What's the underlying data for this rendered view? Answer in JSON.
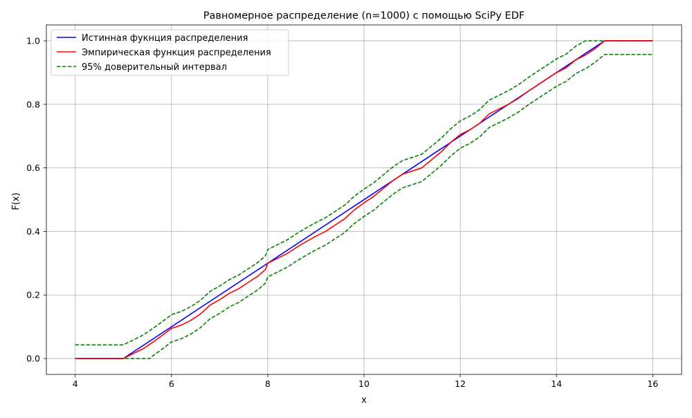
{
  "chart_data": {
    "type": "line",
    "title": "Равномерное распределение (n=1000) с помощью SciPy EDF",
    "xlabel": "x",
    "ylabel": "F(x)",
    "xlim": [
      3.4,
      16.6
    ],
    "ylim": [
      -0.05,
      1.05
    ],
    "grid": true,
    "legend_position": "top-left",
    "x_ticks": [
      4,
      6,
      8,
      10,
      12,
      14,
      16
    ],
    "x_tick_labels": [
      "4",
      "6",
      "8",
      "10",
      "12",
      "14",
      "16"
    ],
    "y_ticks": [
      0.0,
      0.2,
      0.4,
      0.6,
      0.8,
      1.0
    ],
    "y_tick_labels": [
      "0.0",
      "0.2",
      "0.4",
      "0.6",
      "0.8",
      "1.0"
    ],
    "series": [
      {
        "name": "Истинная фукнция распределения",
        "color": "#0000ff",
        "dash": "solid",
        "x": [
          4,
          5,
          15,
          16
        ],
        "y": [
          0,
          0,
          1,
          1
        ]
      },
      {
        "name": "Эмпирическая функция распределения",
        "color": "#ff0000",
        "dash": "solid",
        "x": [
          4,
          5.0,
          5.2,
          5.4,
          5.6,
          5.8,
          6.0,
          6.2,
          6.4,
          6.6,
          6.8,
          7.0,
          7.2,
          7.4,
          7.6,
          7.8,
          7.95,
          8.0,
          8.2,
          8.4,
          8.6,
          8.8,
          9.0,
          9.2,
          9.4,
          9.6,
          9.8,
          10.0,
          10.2,
          10.4,
          10.6,
          10.8,
          11.0,
          11.2,
          11.4,
          11.6,
          11.8,
          12.0,
          12.2,
          12.4,
          12.6,
          12.8,
          13.0,
          13.2,
          13.4,
          13.6,
          13.8,
          14.0,
          14.2,
          14.4,
          14.6,
          14.8,
          15.0,
          16.0
        ],
        "y": [
          0,
          0,
          0.015,
          0.03,
          0.05,
          0.072,
          0.095,
          0.105,
          0.12,
          0.14,
          0.168,
          0.185,
          0.205,
          0.22,
          0.24,
          0.26,
          0.28,
          0.3,
          0.315,
          0.33,
          0.35,
          0.368,
          0.385,
          0.4,
          0.42,
          0.44,
          0.468,
          0.49,
          0.51,
          0.535,
          0.56,
          0.58,
          0.59,
          0.6,
          0.625,
          0.65,
          0.68,
          0.705,
          0.72,
          0.74,
          0.77,
          0.785,
          0.8,
          0.818,
          0.84,
          0.86,
          0.88,
          0.9,
          0.915,
          0.94,
          0.955,
          0.975,
          1.0,
          1.0
        ]
      },
      {
        "name": "95% доверительный интервал",
        "color": "#008000",
        "dash": "dashed",
        "x": [
          4,
          5.0,
          5.2,
          5.4,
          5.6,
          5.8,
          6.0,
          6.2,
          6.4,
          6.6,
          6.8,
          7.0,
          7.2,
          7.4,
          7.6,
          7.8,
          7.95,
          8.0,
          8.2,
          8.4,
          8.6,
          8.8,
          9.0,
          9.2,
          9.4,
          9.6,
          9.8,
          10.0,
          10.2,
          10.4,
          10.6,
          10.8,
          11.0,
          11.2,
          11.4,
          11.6,
          11.8,
          12.0,
          12.2,
          12.4,
          12.6,
          12.8,
          13.0,
          13.2,
          13.4,
          13.6,
          13.8,
          14.0,
          14.2,
          14.4,
          14.6,
          15.0,
          16.0
        ],
        "y": [
          0.043,
          0.043,
          0.058,
          0.073,
          0.093,
          0.115,
          0.138,
          0.148,
          0.163,
          0.183,
          0.211,
          0.228,
          0.248,
          0.263,
          0.283,
          0.303,
          0.323,
          0.343,
          0.358,
          0.373,
          0.393,
          0.411,
          0.428,
          0.443,
          0.463,
          0.483,
          0.511,
          0.533,
          0.553,
          0.578,
          0.603,
          0.623,
          0.633,
          0.643,
          0.668,
          0.693,
          0.723,
          0.748,
          0.763,
          0.783,
          0.813,
          0.828,
          0.843,
          0.861,
          0.883,
          0.903,
          0.923,
          0.943,
          0.958,
          0.983,
          1.0,
          1.0,
          1.0
        ]
      },
      {
        "name": "",
        "color": "#008000",
        "dash": "dashed",
        "x": [
          4,
          5.0,
          5.55,
          5.6,
          5.8,
          6.0,
          6.2,
          6.4,
          6.6,
          6.8,
          7.0,
          7.2,
          7.4,
          7.6,
          7.8,
          7.95,
          8.0,
          8.2,
          8.4,
          8.6,
          8.8,
          9.0,
          9.2,
          9.4,
          9.6,
          9.8,
          10.0,
          10.2,
          10.4,
          10.6,
          10.8,
          11.0,
          11.2,
          11.4,
          11.6,
          11.8,
          12.0,
          12.2,
          12.4,
          12.6,
          12.8,
          13.0,
          13.2,
          13.4,
          13.6,
          13.8,
          14.0,
          14.2,
          14.4,
          14.6,
          14.8,
          15.0,
          16.0
        ],
        "y": [
          0,
          0,
          0,
          0.007,
          0.029,
          0.052,
          0.062,
          0.077,
          0.097,
          0.125,
          0.142,
          0.162,
          0.177,
          0.197,
          0.217,
          0.237,
          0.257,
          0.272,
          0.287,
          0.307,
          0.325,
          0.342,
          0.357,
          0.377,
          0.397,
          0.425,
          0.447,
          0.467,
          0.492,
          0.517,
          0.537,
          0.547,
          0.557,
          0.582,
          0.607,
          0.637,
          0.662,
          0.677,
          0.697,
          0.727,
          0.742,
          0.757,
          0.775,
          0.797,
          0.817,
          0.837,
          0.857,
          0.872,
          0.897,
          0.912,
          0.932,
          0.957,
          0.957
        ]
      }
    ]
  }
}
